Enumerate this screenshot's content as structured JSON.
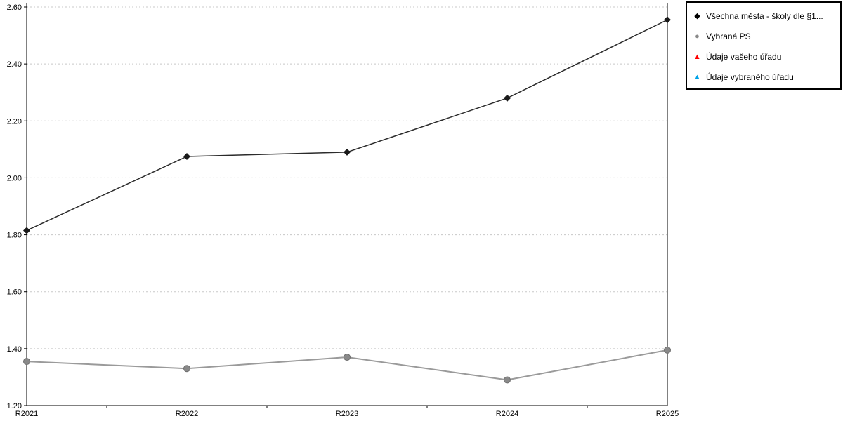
{
  "chart_data": {
    "type": "line",
    "title": "",
    "xlabel": "",
    "ylabel": "",
    "categories": [
      "R2021",
      "R2022",
      "R2023",
      "R2024",
      "R2025"
    ],
    "series": [
      {
        "name": "Všechna města - školy dle §1...",
        "marker": "diamond",
        "color": "#1a1a1a",
        "line_color": "#2b2b2b",
        "values": [
          1.815,
          2.075,
          2.09,
          2.28,
          2.555
        ]
      },
      {
        "name": "Vybraná PS",
        "marker": "circle",
        "color": "#898989",
        "line_color": "#9a9a9a",
        "values": [
          1.355,
          1.33,
          1.37,
          1.29,
          1.395
        ]
      },
      {
        "name": "Údaje vašeho úřadu",
        "marker": "triangle",
        "color": "#ff0000",
        "line_color": "#ff0000",
        "values": []
      },
      {
        "name": "Údaje vybraného úřadu",
        "marker": "triangle",
        "color": "#00a3e8",
        "line_color": "#00a3e8",
        "values": []
      }
    ],
    "ylim": [
      1.2,
      2.6
    ],
    "yticks": [
      "2.60",
      "2.40",
      "2.20",
      "2.00",
      "1.80",
      "1.60",
      "1.40",
      "1.20"
    ],
    "grid": "horizontal-dotted",
    "grid_color": "#c8c8c8",
    "legend_position": "top-right"
  },
  "legend": {
    "items": [
      {
        "label": "Všechna města - školy dle §1...",
        "marker": "diamond",
        "color": "#000000"
      },
      {
        "label": "Vybraná PS",
        "marker": "circle",
        "color": "#898989"
      },
      {
        "label": "Údaje vašeho úřadu",
        "marker": "triangle",
        "color": "#ff0000"
      },
      {
        "label": "Údaje vybraného úřadu",
        "marker": "triangle",
        "color": "#00a3e8"
      }
    ]
  }
}
